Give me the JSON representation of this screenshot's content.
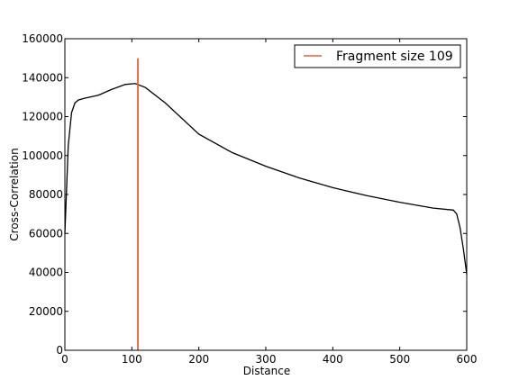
{
  "chart_data": {
    "type": "line",
    "xlabel": "Distance",
    "ylabel": "Cross-Correlation",
    "xlim": [
      0,
      600
    ],
    "ylim": [
      0,
      160000
    ],
    "x_ticks": [
      0,
      100,
      200,
      300,
      400,
      500,
      600
    ],
    "y_ticks": [
      0,
      20000,
      40000,
      60000,
      80000,
      100000,
      120000,
      140000,
      160000
    ],
    "grid": false,
    "legend_position": "top-right",
    "series": [
      {
        "color": "#000000",
        "x": [
          0,
          5,
          10,
          15,
          20,
          30,
          50,
          70,
          90,
          105,
          120,
          150,
          200,
          250,
          300,
          350,
          400,
          450,
          500,
          550,
          580,
          585,
          590,
          595,
          600
        ],
        "y": [
          60000,
          105000,
          122000,
          127000,
          128500,
          129500,
          131000,
          134000,
          136500,
          137000,
          135000,
          127000,
          111000,
          101500,
          94500,
          88500,
          83500,
          79500,
          76000,
          73000,
          72000,
          70000,
          63000,
          52000,
          39000
        ]
      }
    ],
    "vline": {
      "label": "Fragment size 109",
      "x": 109,
      "ymin": 0,
      "ymax": 150000,
      "color": "#e8603c"
    }
  }
}
